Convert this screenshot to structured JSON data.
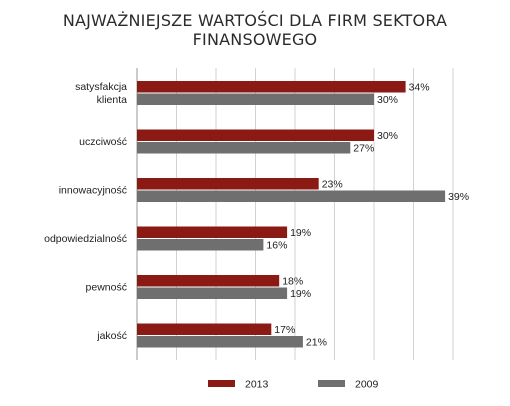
{
  "title": "NAJWAŻNIEJSZE WARTOŚCI DLA FIRM SEKTORA FINANSOWEGO",
  "colors": {
    "s2013": "#8b1a14",
    "s2009": "#6f6f6f",
    "grid": "#d2d2d2",
    "text": "#1e1e1e"
  },
  "chart_data": {
    "type": "bar",
    "orientation": "horizontal",
    "categories": [
      [
        "satysfakcja",
        "klienta"
      ],
      [
        "uczciwość"
      ],
      [
        "innowacyjność"
      ],
      [
        "odpowiedzialność"
      ],
      [
        "pewność"
      ],
      [
        "jakość"
      ]
    ],
    "series": [
      {
        "name": "2013",
        "values": [
          34,
          30,
          23,
          19,
          18,
          17
        ],
        "labels": [
          "34%",
          "30%",
          "23%",
          "19%",
          "18%",
          "17%"
        ]
      },
      {
        "name": "2009",
        "values": [
          30,
          27,
          39,
          16,
          19,
          21
        ],
        "labels": [
          "30%",
          "27%",
          "39%",
          "16%",
          "19%",
          "21%"
        ]
      }
    ],
    "xlim": [
      0,
      40
    ],
    "grid": true,
    "legend": "bottom"
  }
}
